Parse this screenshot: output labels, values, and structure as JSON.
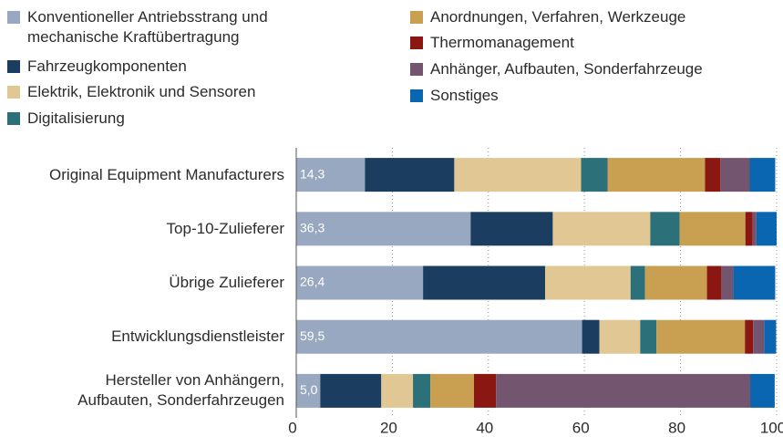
{
  "chart_data": {
    "type": "stacked_barh",
    "categories": [
      "Original Equipment Manufacturers",
      "Top-10-Zulieferer",
      "Übrige Zulieferer",
      "Entwicklungsdienstleister",
      "Hersteller von Anhängern,\nAufbauten, Sonderfahrzeugen"
    ],
    "series": [
      {
        "name": "Konventioneller Antriebsstrang und\nmechanische Kraftübertragung",
        "color": "#97a8c0",
        "values": [
          14.3,
          36.3,
          26.4,
          59.5,
          5.0
        ],
        "value_labels": [
          "14,3",
          "36,3",
          "26,4",
          "59,5",
          "5,0"
        ]
      },
      {
        "name": "Fahrzeugkomponenten",
        "color": "#1b3d5f",
        "values": [
          18.6,
          17.1,
          25.4,
          3.6,
          12.7
        ]
      },
      {
        "name": "Elektrik, Elektronik und Sensoren",
        "color": "#e0c794",
        "values": [
          26.4,
          20.3,
          17.8,
          8.5,
          6.6
        ]
      },
      {
        "name": "Digitalisierung",
        "color": "#2c7179",
        "values": [
          5.5,
          6.1,
          3.0,
          3.4,
          3.6
        ]
      },
      {
        "name": "Anordnungen, Verfahren, Werkzeuge",
        "color": "#c9a052",
        "values": [
          20.3,
          13.7,
          12.9,
          18.4,
          9.1
        ]
      },
      {
        "name": "Thermomanagement",
        "color": "#8a1712",
        "values": [
          3.2,
          1.5,
          3.0,
          1.7,
          4.6
        ]
      },
      {
        "name": "Anhänger, Aufbauten, Sonderfahrzeuge",
        "color": "#735570",
        "values": [
          6.1,
          0.8,
          2.5,
          2.3,
          52.9
        ]
      },
      {
        "name": "Sonstiges",
        "color": "#0b66b1",
        "values": [
          5.3,
          4.2,
          8.7,
          2.5,
          5.1
        ]
      }
    ],
    "xlim": [
      0,
      100
    ],
    "xticks": [
      0,
      20,
      40,
      60,
      80,
      100
    ],
    "grid": true
  }
}
